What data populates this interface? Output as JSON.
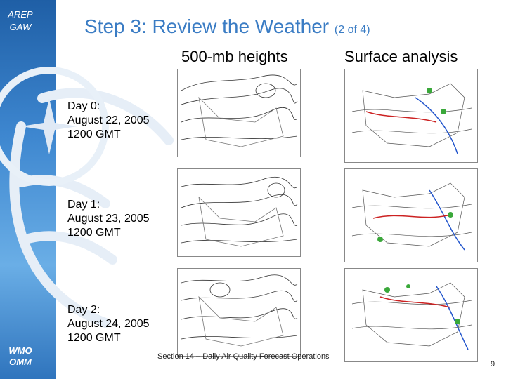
{
  "sidebar": {
    "top_logo": "AREP\nGAW",
    "bottom_logo": "WMO\nOMM"
  },
  "title": {
    "main": "Step 3:  Review the Weather",
    "sub": "(2 of 4)"
  },
  "columns": {
    "left": "500-mb heights",
    "right": "Surface analysis"
  },
  "days": [
    {
      "label": "Day 0:\nAugust 22, 2005\n1200 GMT"
    },
    {
      "label": "Day 1:\nAugust 23, 2005\n1200 GMT"
    },
    {
      "label": "Day 2:\nAugust 24, 2005\n1200 GMT"
    }
  ],
  "footer": "Section 14 – Daily Air Quality Forecast Operations",
  "page_number": "9",
  "colors": {
    "title": "#3a7cc4",
    "sidebar": "#2f74bd"
  }
}
